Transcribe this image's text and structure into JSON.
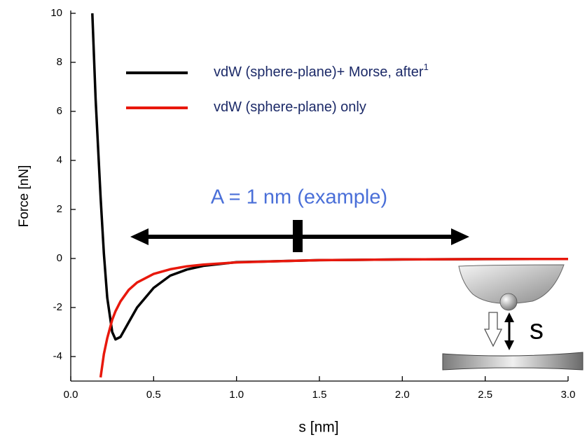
{
  "chart_data": {
    "type": "line",
    "x_label": "s [nm]",
    "y_label": "Force [nN]",
    "annotation": "A = 1 nm (example)",
    "inset_label": "s",
    "x": [
      0.13,
      0.15,
      0.18,
      0.2,
      0.22,
      0.25,
      0.27,
      0.3,
      0.35,
      0.4,
      0.5,
      0.6,
      0.7,
      0.8,
      1.0,
      1.5,
      2.0,
      2.5,
      3.0
    ],
    "series": [
      {
        "name": "vdW (sphere-plane)+ Morse, after",
        "footnote": "1",
        "color": "#000000",
        "values": [
          10,
          6.5,
          2.5,
          0.2,
          -1.6,
          -3.0,
          -3.3,
          -3.2,
          -2.6,
          -2.0,
          -1.2,
          -0.7,
          -0.45,
          -0.3,
          -0.15,
          -0.07,
          -0.04,
          -0.025,
          -0.02
        ]
      },
      {
        "name": "vdW (sphere-plane) only",
        "color": "#e8180c",
        "values": [
          null,
          null,
          -4.85,
          -3.9,
          -3.25,
          -2.5,
          -2.15,
          -1.75,
          -1.28,
          -0.98,
          -0.63,
          -0.44,
          -0.32,
          -0.25,
          -0.16,
          -0.07,
          -0.04,
          -0.025,
          -0.02
        ]
      }
    ],
    "xlim": [
      0,
      3.0
    ],
    "xticks": [
      {
        "value": 0,
        "label": "0.0"
      },
      0.5,
      {
        "value": 1,
        "label": "1.0"
      },
      1.5,
      {
        "value": 2,
        "label": "2.0"
      },
      2.5,
      {
        "value": 3,
        "label": "3.0"
      }
    ],
    "ylim": [
      -5,
      10
    ],
    "yticks": [
      -4,
      -2,
      0,
      2,
      4,
      6,
      8,
      10
    ]
  }
}
